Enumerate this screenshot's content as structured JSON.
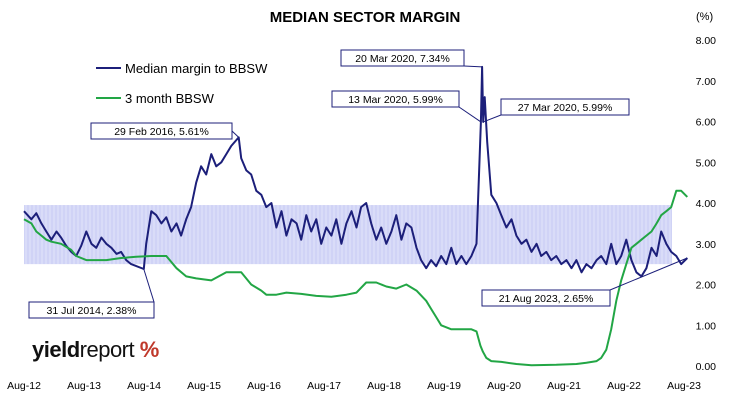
{
  "chart_data": {
    "type": "line",
    "title": "MEDIAN SECTOR MARGIN",
    "ylabel": "(%)",
    "ylim": [
      0,
      8
    ],
    "y_ticks": [
      "8.00",
      "7.00",
      "6.00",
      "5.00",
      "4.00",
      "3.00",
      "2.00",
      "1.00",
      "0.00"
    ],
    "x_ticks": [
      "Aug-12",
      "Aug-13",
      "Aug-14",
      "Aug-15",
      "Aug-16",
      "Aug-17",
      "Aug-18",
      "Aug-19",
      "Aug-20",
      "Aug-21",
      "Aug-22",
      "Aug-23"
    ],
    "x_range": [
      "2012-08",
      "2023-08"
    ],
    "grid": false,
    "legend": "top-left",
    "shaded_band": {
      "from": 2.5,
      "to": 3.95,
      "color": "#c8cbf5"
    },
    "series": [
      {
        "name": "Median margin to BBSW",
        "color": "#1c1f7a",
        "points": [
          [
            "2012-08-01",
            3.8
          ],
          [
            "2012-09-15",
            3.6
          ],
          [
            "2012-10-15",
            3.75
          ],
          [
            "2012-11-15",
            3.5
          ],
          [
            "2012-12-15",
            3.3
          ],
          [
            "2013-01-15",
            3.1
          ],
          [
            "2013-02-15",
            3.3
          ],
          [
            "2013-03-15",
            3.15
          ],
          [
            "2013-04-15",
            2.95
          ],
          [
            "2013-05-15",
            2.8
          ],
          [
            "2013-06-15",
            2.7
          ],
          [
            "2013-07-15",
            2.95
          ],
          [
            "2013-08-15",
            3.3
          ],
          [
            "2013-09-15",
            3.0
          ],
          [
            "2013-10-15",
            2.9
          ],
          [
            "2013-11-15",
            3.15
          ],
          [
            "2013-12-15",
            3.0
          ],
          [
            "2014-01-15",
            2.9
          ],
          [
            "2014-02-15",
            2.75
          ],
          [
            "2014-03-15",
            2.8
          ],
          [
            "2014-04-15",
            2.6
          ],
          [
            "2014-05-15",
            2.5
          ],
          [
            "2014-07-31",
            2.38
          ],
          [
            "2014-08-15",
            3.0
          ],
          [
            "2014-09-15",
            3.8
          ],
          [
            "2014-10-15",
            3.7
          ],
          [
            "2014-11-15",
            3.5
          ],
          [
            "2014-12-15",
            3.65
          ],
          [
            "2015-01-15",
            3.3
          ],
          [
            "2015-02-15",
            3.5
          ],
          [
            "2015-03-15",
            3.2
          ],
          [
            "2015-04-15",
            3.6
          ],
          [
            "2015-05-15",
            3.9
          ],
          [
            "2015-06-15",
            4.5
          ],
          [
            "2015-07-15",
            4.9
          ],
          [
            "2015-08-15",
            4.7
          ],
          [
            "2015-09-15",
            5.2
          ],
          [
            "2015-10-15",
            4.9
          ],
          [
            "2015-11-15",
            5.0
          ],
          [
            "2015-12-15",
            5.2
          ],
          [
            "2016-01-15",
            5.4
          ],
          [
            "2016-02-29",
            5.61
          ],
          [
            "2016-03-15",
            5.1
          ],
          [
            "2016-04-15",
            4.8
          ],
          [
            "2016-05-15",
            4.7
          ],
          [
            "2016-06-15",
            4.3
          ],
          [
            "2016-07-15",
            4.2
          ],
          [
            "2016-08-15",
            3.9
          ],
          [
            "2016-09-15",
            4.0
          ],
          [
            "2016-10-15",
            3.4
          ],
          [
            "2016-11-15",
            3.8
          ],
          [
            "2016-12-15",
            3.2
          ],
          [
            "2017-01-15",
            3.6
          ],
          [
            "2017-02-15",
            3.5
          ],
          [
            "2017-03-15",
            3.1
          ],
          [
            "2017-04-15",
            3.7
          ],
          [
            "2017-05-15",
            3.3
          ],
          [
            "2017-06-15",
            3.6
          ],
          [
            "2017-07-15",
            3.0
          ],
          [
            "2017-08-15",
            3.4
          ],
          [
            "2017-09-15",
            3.2
          ],
          [
            "2017-10-15",
            3.6
          ],
          [
            "2017-11-15",
            3.0
          ],
          [
            "2017-12-15",
            3.5
          ],
          [
            "2018-01-15",
            3.8
          ],
          [
            "2018-02-15",
            3.4
          ],
          [
            "2018-03-15",
            3.9
          ],
          [
            "2018-04-15",
            4.0
          ],
          [
            "2018-05-15",
            3.5
          ],
          [
            "2018-06-15",
            3.1
          ],
          [
            "2018-07-15",
            3.4
          ],
          [
            "2018-08-15",
            3.0
          ],
          [
            "2018-09-15",
            3.3
          ],
          [
            "2018-10-15",
            3.7
          ],
          [
            "2018-11-15",
            3.1
          ],
          [
            "2018-12-15",
            3.5
          ],
          [
            "2019-01-15",
            3.4
          ],
          [
            "2019-02-15",
            2.9
          ],
          [
            "2019-03-15",
            2.6
          ],
          [
            "2019-04-15",
            2.4
          ],
          [
            "2019-05-15",
            2.6
          ],
          [
            "2019-06-15",
            2.45
          ],
          [
            "2019-07-15",
            2.7
          ],
          [
            "2019-08-15",
            2.5
          ],
          [
            "2019-09-15",
            2.9
          ],
          [
            "2019-10-15",
            2.5
          ],
          [
            "2019-11-15",
            2.7
          ],
          [
            "2019-12-15",
            2.5
          ],
          [
            "2020-01-15",
            2.7
          ],
          [
            "2020-02-15",
            3.0
          ],
          [
            "2020-03-13",
            5.99
          ],
          [
            "2020-03-20",
            7.34
          ],
          [
            "2020-03-27",
            5.99
          ],
          [
            "2020-04-05",
            6.6
          ],
          [
            "2020-04-20",
            5.5
          ],
          [
            "2020-05-15",
            4.2
          ],
          [
            "2020-06-15",
            4.0
          ],
          [
            "2020-07-15",
            3.7
          ],
          [
            "2020-08-15",
            3.4
          ],
          [
            "2020-09-15",
            3.6
          ],
          [
            "2020-10-15",
            3.2
          ],
          [
            "2020-11-15",
            3.0
          ],
          [
            "2020-12-15",
            3.1
          ],
          [
            "2021-01-15",
            2.8
          ],
          [
            "2021-02-15",
            3.0
          ],
          [
            "2021-03-15",
            2.7
          ],
          [
            "2021-04-15",
            2.8
          ],
          [
            "2021-05-15",
            2.6
          ],
          [
            "2021-06-15",
            2.7
          ],
          [
            "2021-07-15",
            2.5
          ],
          [
            "2021-08-15",
            2.6
          ],
          [
            "2021-09-15",
            2.4
          ],
          [
            "2021-10-15",
            2.6
          ],
          [
            "2021-11-15",
            2.3
          ],
          [
            "2021-12-15",
            2.5
          ],
          [
            "2022-01-15",
            2.4
          ],
          [
            "2022-02-15",
            2.6
          ],
          [
            "2022-03-15",
            2.7
          ],
          [
            "2022-04-15",
            2.5
          ],
          [
            "2022-05-15",
            3.0
          ],
          [
            "2022-06-15",
            2.5
          ],
          [
            "2022-07-15",
            2.7
          ],
          [
            "2022-08-15",
            3.1
          ],
          [
            "2022-09-15",
            2.6
          ],
          [
            "2022-10-15",
            2.3
          ],
          [
            "2022-11-15",
            2.2
          ],
          [
            "2022-12-15",
            2.4
          ],
          [
            "2023-01-15",
            2.9
          ],
          [
            "2023-02-15",
            2.7
          ],
          [
            "2023-03-15",
            3.3
          ],
          [
            "2023-04-15",
            3.0
          ],
          [
            "2023-05-15",
            2.8
          ],
          [
            "2023-06-15",
            2.7
          ],
          [
            "2023-07-15",
            2.5
          ],
          [
            "2023-08-21",
            2.65
          ]
        ]
      },
      {
        "name": "3 month BBSW",
        "color": "#22a645",
        "points": [
          [
            "2012-08-01",
            3.6
          ],
          [
            "2012-09-15",
            3.5
          ],
          [
            "2012-10-15",
            3.3
          ],
          [
            "2012-11-15",
            3.2
          ],
          [
            "2012-12-15",
            3.1
          ],
          [
            "2013-01-15",
            3.05
          ],
          [
            "2013-03-15",
            3.0
          ],
          [
            "2013-05-15",
            2.85
          ],
          [
            "2013-06-15",
            2.7
          ],
          [
            "2013-08-15",
            2.6
          ],
          [
            "2013-10-15",
            2.6
          ],
          [
            "2013-12-15",
            2.6
          ],
          [
            "2014-03-15",
            2.65
          ],
          [
            "2014-06-15",
            2.68
          ],
          [
            "2014-09-15",
            2.7
          ],
          [
            "2014-12-15",
            2.7
          ],
          [
            "2015-02-15",
            2.4
          ],
          [
            "2015-04-15",
            2.2
          ],
          [
            "2015-06-15",
            2.15
          ],
          [
            "2015-09-15",
            2.1
          ],
          [
            "2015-12-15",
            2.3
          ],
          [
            "2016-03-15",
            2.3
          ],
          [
            "2016-05-15",
            2.0
          ],
          [
            "2016-07-15",
            1.85
          ],
          [
            "2016-08-15",
            1.75
          ],
          [
            "2016-10-15",
            1.75
          ],
          [
            "2016-12-15",
            1.8
          ],
          [
            "2017-03-15",
            1.77
          ],
          [
            "2017-06-15",
            1.72
          ],
          [
            "2017-09-15",
            1.7
          ],
          [
            "2017-12-15",
            1.75
          ],
          [
            "2018-02-15",
            1.8
          ],
          [
            "2018-04-15",
            2.05
          ],
          [
            "2018-06-15",
            2.05
          ],
          [
            "2018-08-15",
            1.95
          ],
          [
            "2018-10-15",
            1.9
          ],
          [
            "2018-12-15",
            2.0
          ],
          [
            "2019-02-15",
            1.85
          ],
          [
            "2019-04-15",
            1.6
          ],
          [
            "2019-05-15",
            1.4
          ],
          [
            "2019-06-15",
            1.2
          ],
          [
            "2019-07-15",
            1.0
          ],
          [
            "2019-08-15",
            0.95
          ],
          [
            "2019-09-15",
            0.9
          ],
          [
            "2019-10-15",
            0.9
          ],
          [
            "2019-11-15",
            0.9
          ],
          [
            "2019-12-15",
            0.9
          ],
          [
            "2020-01-15",
            0.9
          ],
          [
            "2020-02-15",
            0.85
          ],
          [
            "2020-03-10",
            0.5
          ],
          [
            "2020-03-25",
            0.35
          ],
          [
            "2020-04-15",
            0.2
          ],
          [
            "2020-05-15",
            0.12
          ],
          [
            "2020-07-15",
            0.1
          ],
          [
            "2020-10-15",
            0.05
          ],
          [
            "2021-01-15",
            0.02
          ],
          [
            "2021-06-15",
            0.03
          ],
          [
            "2021-10-15",
            0.05
          ],
          [
            "2021-12-15",
            0.08
          ],
          [
            "2022-02-15",
            0.12
          ],
          [
            "2022-03-15",
            0.2
          ],
          [
            "2022-04-15",
            0.4
          ],
          [
            "2022-05-15",
            0.9
          ],
          [
            "2022-06-15",
            1.6
          ],
          [
            "2022-07-15",
            2.1
          ],
          [
            "2022-08-15",
            2.5
          ],
          [
            "2022-09-15",
            2.9
          ],
          [
            "2022-10-15",
            3.0
          ],
          [
            "2022-11-15",
            3.1
          ],
          [
            "2022-12-15",
            3.2
          ],
          [
            "2023-01-15",
            3.3
          ],
          [
            "2023-02-15",
            3.5
          ],
          [
            "2023-03-15",
            3.7
          ],
          [
            "2023-04-15",
            3.8
          ],
          [
            "2023-05-15",
            3.9
          ],
          [
            "2023-06-15",
            4.3
          ],
          [
            "2023-07-15",
            4.3
          ],
          [
            "2023-08-21",
            4.15
          ]
        ]
      }
    ],
    "annotations": [
      {
        "text": "29 Feb 2016, 5.61%",
        "date": "2016-02-29",
        "value": 5.61
      },
      {
        "text": "20 Mar 2020, 7.34%",
        "date": "2020-03-20",
        "value": 7.34
      },
      {
        "text": "13 Mar 2020, 5.99%",
        "date": "2020-03-13",
        "value": 5.99
      },
      {
        "text": "27 Mar 2020, 5.99%",
        "date": "2020-03-27",
        "value": 5.99
      },
      {
        "text": "31 Jul 2014, 2.38%",
        "date": "2014-07-31",
        "value": 2.38
      },
      {
        "text": "21 Aug 2023, 2.65%",
        "date": "2023-08-21",
        "value": 2.65
      }
    ]
  },
  "logo": {
    "text_bold": "yield",
    "text_light": "report",
    "symbol": "%"
  }
}
